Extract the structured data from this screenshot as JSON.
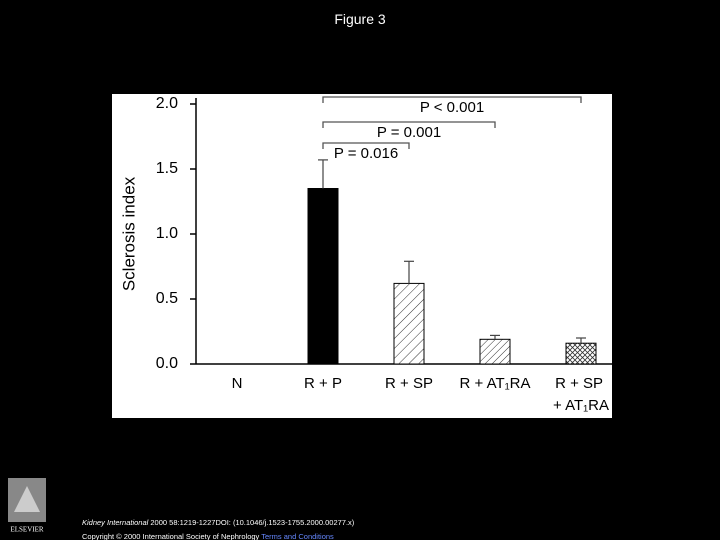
{
  "page_title": "Figure 3",
  "chart_data": {
    "type": "bar",
    "ylabel": "Sclerosis index",
    "categories": [
      "N",
      "R + P",
      "R + SP",
      "R + AT₁RA",
      "R + SP + AT₁RA"
    ],
    "values": [
      0,
      1.35,
      0.62,
      0.19,
      0.16
    ],
    "errors": [
      0,
      0.22,
      0.17,
      0.03,
      0.04
    ],
    "color": "#000000",
    "ylim": [
      0,
      2.0
    ],
    "yticks": [
      {
        "value": 0,
        "label": "0.0"
      },
      0.5,
      {
        "value": 1,
        "label": "1.0"
      },
      1.5,
      {
        "value": 2,
        "label": "2.0"
      }
    ],
    "annotations": [
      "P = 0.016",
      "P = 0.001",
      "P < 0.001"
    ]
  },
  "footer": {
    "journal": "Kidney International",
    "details": " 2000 58:1219-1227DOI: (10.1046/j.1523-1755.2000.00277.x)",
    "copyright": "Copyright © 2000 International Society of Nephrology",
    "link": "Terms and Conditions",
    "logo": "ELSEVIER"
  }
}
